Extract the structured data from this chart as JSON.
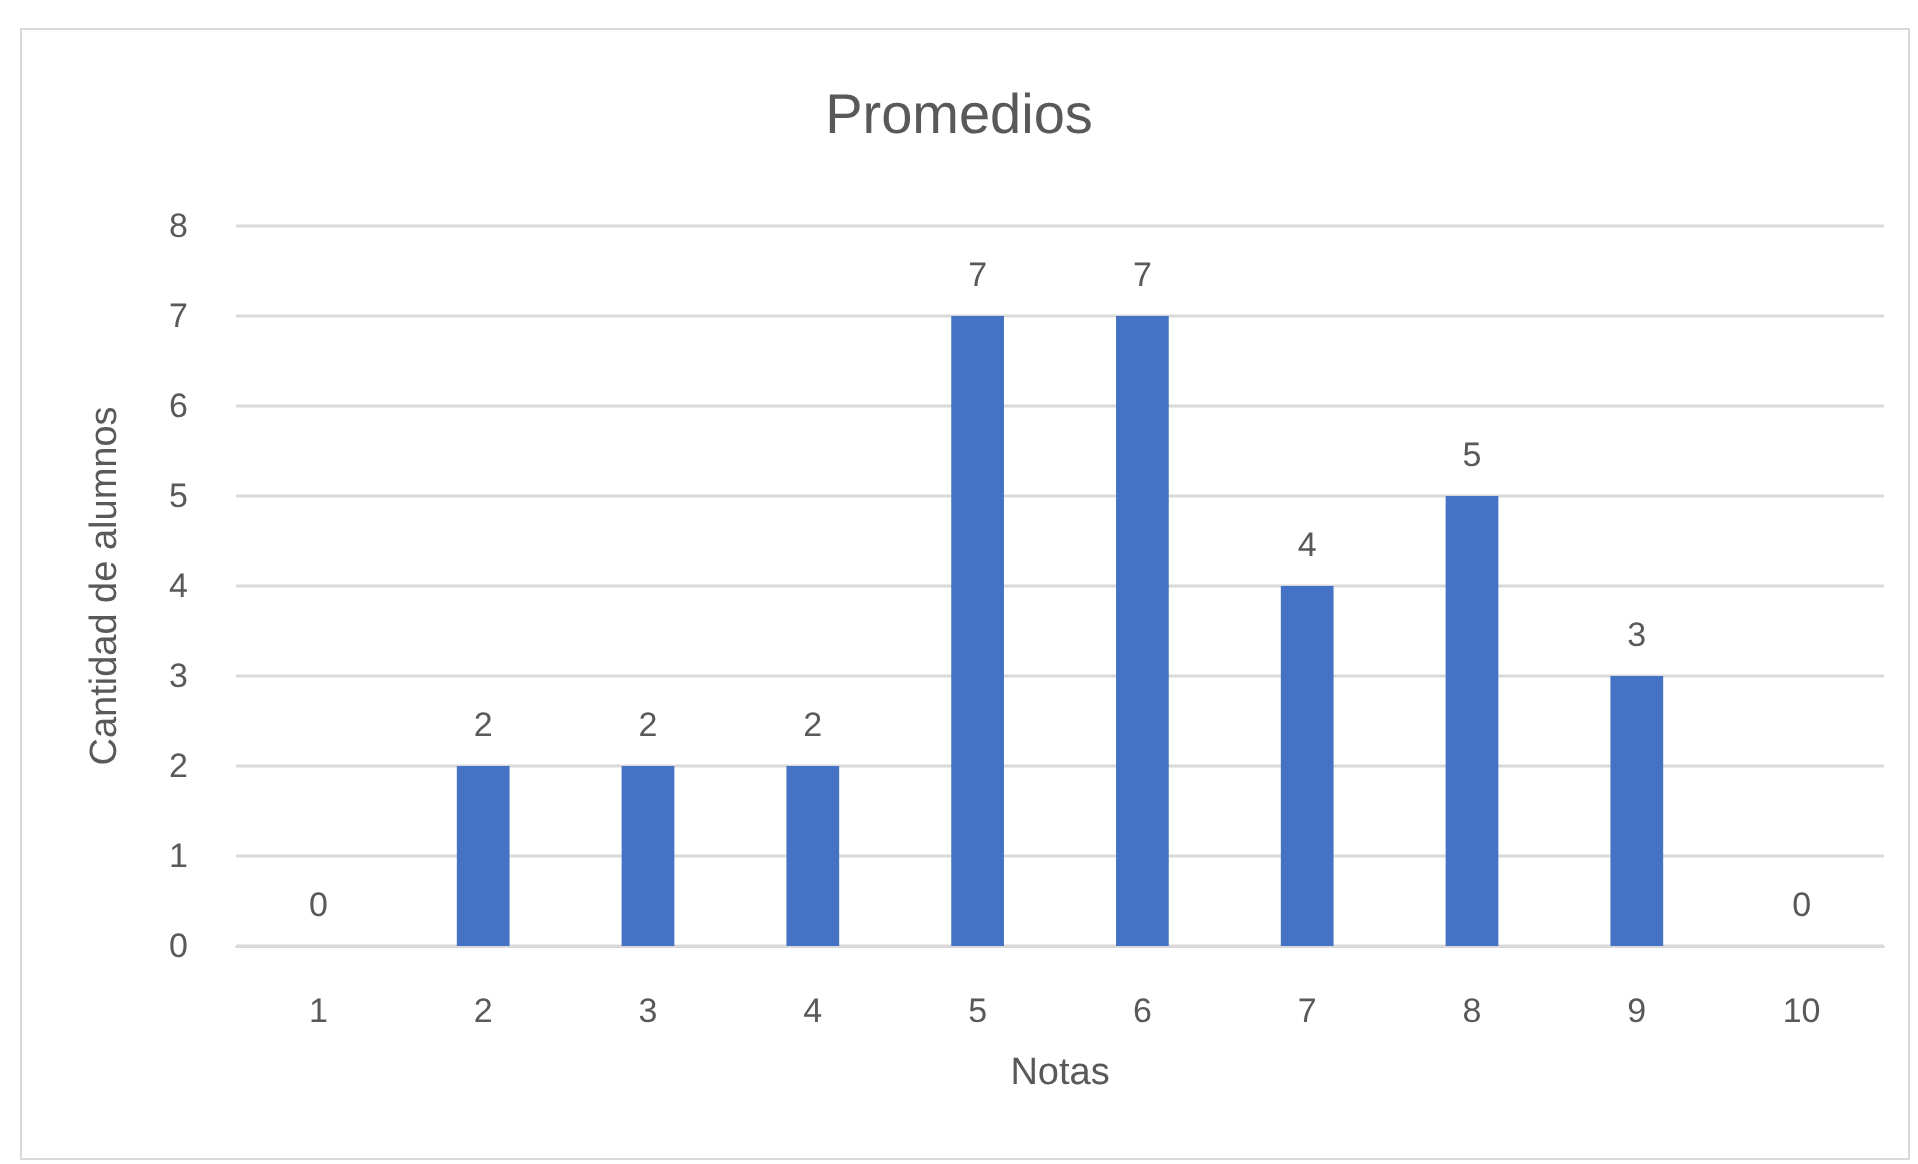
{
  "chart_data": {
    "type": "bar",
    "title": "Promedios",
    "xlabel": "Notas",
    "ylabel": "Cantidad de alumnos",
    "categories": [
      "1",
      "2",
      "3",
      "4",
      "5",
      "6",
      "7",
      "8",
      "9",
      "10"
    ],
    "values": [
      0,
      2,
      2,
      2,
      7,
      7,
      4,
      5,
      3,
      0
    ],
    "color": "#4472c4",
    "ylim": [
      0,
      8
    ],
    "yticks": [
      0,
      1,
      2,
      3,
      4,
      5,
      6,
      7,
      8
    ],
    "grid": "y",
    "data_labels": true
  }
}
